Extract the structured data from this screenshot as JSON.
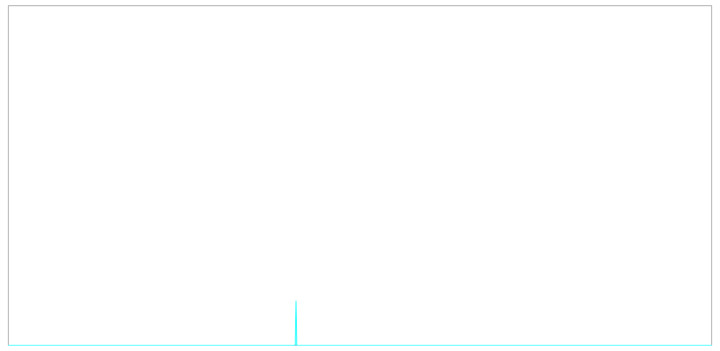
{
  "chart_data": {
    "type": "area",
    "title": "",
    "xlabel": "",
    "ylabel": "",
    "grid": false,
    "x": [
      0,
      100,
      407,
      408,
      409,
      410,
      700,
      1000
    ],
    "series": [
      {
        "values": [
          0,
          0,
          0,
          0.42,
          13,
          0,
          0,
          0
        ],
        "color": "#00ffff"
      }
    ],
    "xlim": [
      0,
      1000
    ],
    "ylim": [
      0,
      100
    ],
    "colors": {
      "frame": "#808080",
      "background": "#ffffff",
      "series": "#00ffff"
    }
  }
}
